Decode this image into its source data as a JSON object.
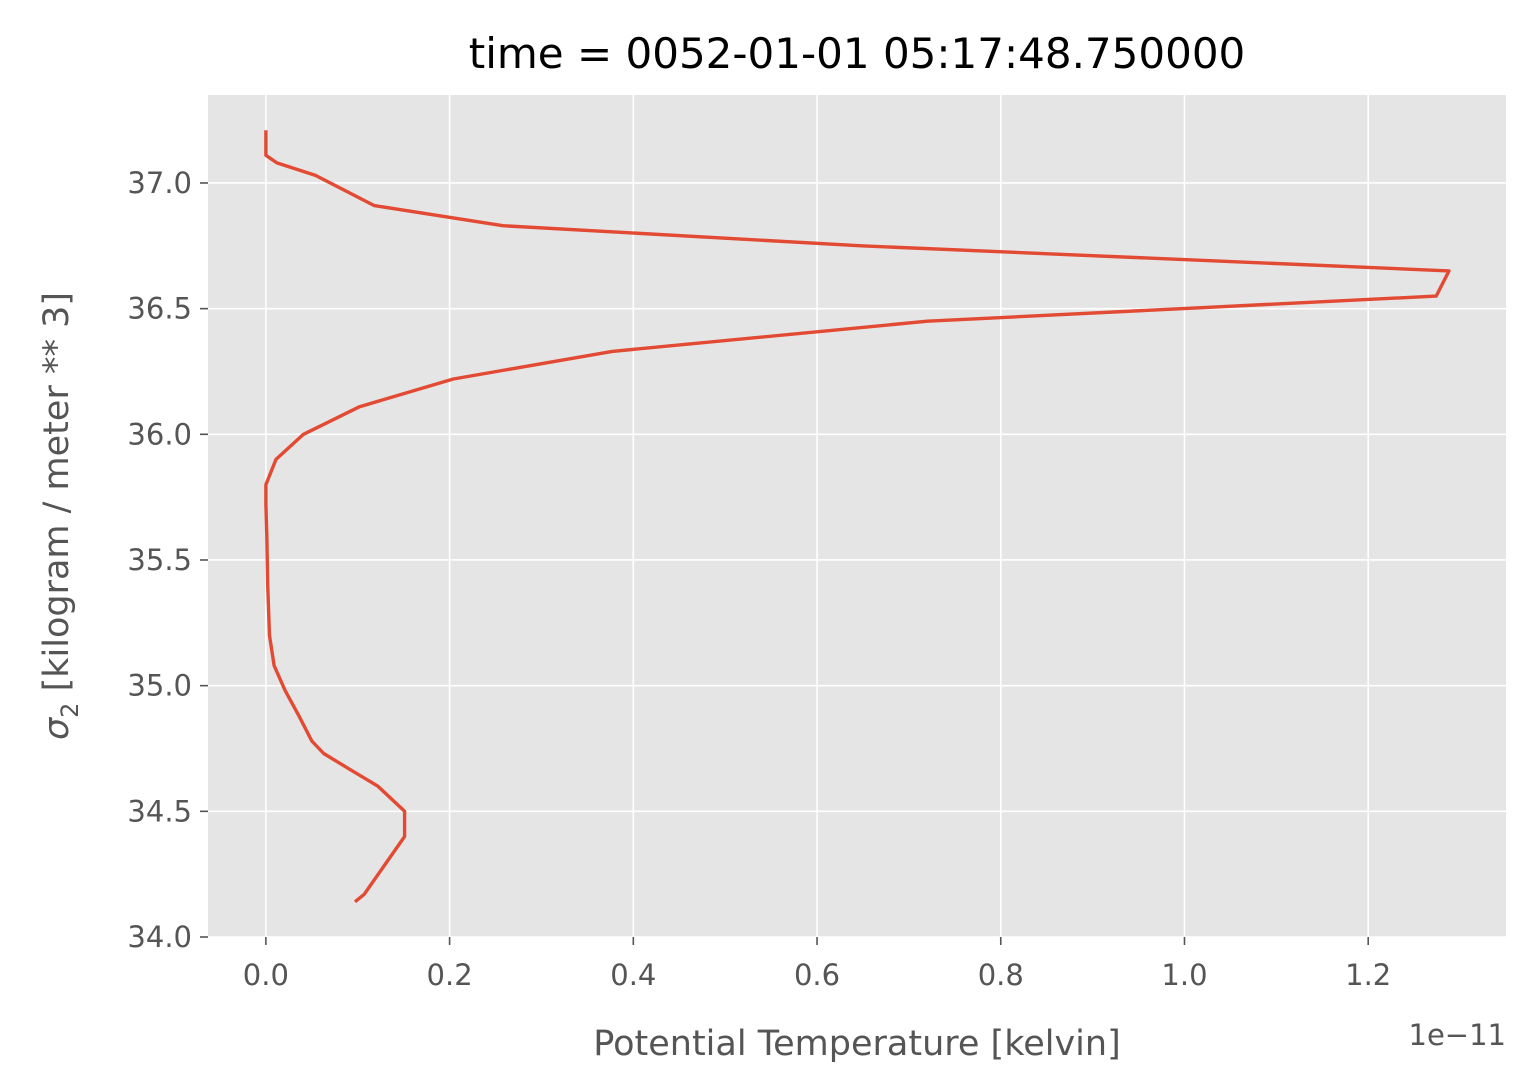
{
  "chart_data": {
    "type": "line",
    "title": "time = 0052-01-01 05:17:48.750000",
    "xlabel": "Potential Temperature [kelvin]",
    "ylabel_symbol": "σ",
    "ylabel_subscript": "2",
    "ylabel_rest": " [kilogram / meter ** 3]",
    "x_offset_text": "1e−11",
    "xlim": [
      -0.063,
      1.35
    ],
    "ylim": [
      34.0,
      37.35
    ],
    "x_ticks": [
      0.0,
      0.2,
      0.4,
      0.6,
      0.8,
      1.0,
      1.2
    ],
    "x_tick_labels": [
      "0.0",
      "0.2",
      "0.4",
      "0.6",
      "0.8",
      "1.0",
      "1.2"
    ],
    "y_ticks": [
      34.0,
      34.5,
      35.0,
      35.5,
      36.0,
      36.5,
      37.0
    ],
    "y_tick_labels": [
      "34.0",
      "34.5",
      "35.0",
      "35.5",
      "36.0",
      "36.5",
      "37.0"
    ],
    "grid": true,
    "colors": {
      "line": "#e24a33",
      "plot_bg": "#e5e5e5",
      "grid": "#ffffff",
      "tick_text": "#555555"
    },
    "series": [
      {
        "x": [
          0.097,
          0.107,
          0.13,
          0.151,
          0.151,
          0.122,
          0.09,
          0.063,
          0.05,
          0.036,
          0.021,
          0.009,
          0.004,
          0.002,
          0.001,
          0.0,
          0.0,
          0.0,
          0.011,
          0.041,
          0.102,
          0.204,
          0.377,
          0.72,
          1.274,
          1.288,
          0.648,
          0.258,
          0.118,
          0.054,
          0.012,
          0.0,
          0.0
        ],
        "y": [
          34.14,
          34.17,
          34.29,
          34.4,
          34.5,
          34.6,
          34.67,
          34.73,
          34.78,
          34.88,
          34.98,
          35.08,
          35.2,
          35.4,
          35.6,
          35.72,
          35.8,
          35.8,
          35.9,
          36.0,
          36.11,
          36.22,
          36.33,
          36.45,
          36.55,
          36.65,
          36.75,
          36.83,
          36.91,
          37.03,
          37.08,
          37.11,
          37.21
        ]
      }
    ]
  }
}
